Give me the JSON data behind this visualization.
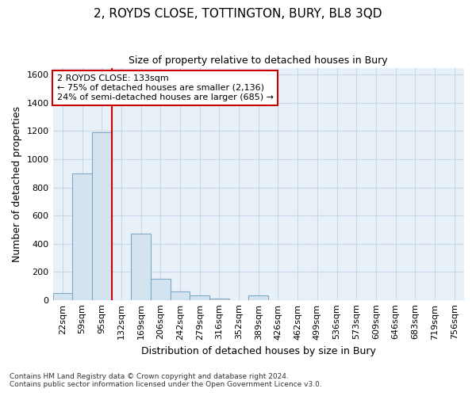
{
  "title": "2, ROYDS CLOSE, TOTTINGTON, BURY, BL8 3QD",
  "subtitle": "Size of property relative to detached houses in Bury",
  "xlabel": "Distribution of detached houses by size in Bury",
  "ylabel": "Number of detached properties",
  "categories": [
    "22sqm",
    "59sqm",
    "95sqm",
    "132sqm",
    "169sqm",
    "206sqm",
    "242sqm",
    "279sqm",
    "316sqm",
    "352sqm",
    "389sqm",
    "426sqm",
    "462sqm",
    "499sqm",
    "536sqm",
    "573sqm",
    "609sqm",
    "646sqm",
    "683sqm",
    "719sqm",
    "756sqm"
  ],
  "values": [
    50,
    900,
    1190,
    0,
    470,
    150,
    60,
    30,
    8,
    0,
    30,
    0,
    0,
    0,
    0,
    0,
    0,
    0,
    0,
    0,
    0
  ],
  "bar_color": "#d4e3f0",
  "bar_edge_color": "#7aaac8",
  "grid_color": "#c8d8e8",
  "background_color": "#e8f0f8",
  "annotation_label": "2 ROYDS CLOSE: 133sqm",
  "annotation_line1": "← 75% of detached houses are smaller (2,136)",
  "annotation_line2": "24% of semi-detached houses are larger (685) →",
  "annotation_box_color": "#ffffff",
  "annotation_box_edge": "#cc0000",
  "vline_color": "#cc0000",
  "ylim": [
    0,
    1650
  ],
  "yticks": [
    0,
    200,
    400,
    600,
    800,
    1000,
    1200,
    1400,
    1600
  ],
  "vline_x_index": 2.5,
  "footnote1": "Contains HM Land Registry data © Crown copyright and database right 2024.",
  "footnote2": "Contains public sector information licensed under the Open Government Licence v3.0."
}
